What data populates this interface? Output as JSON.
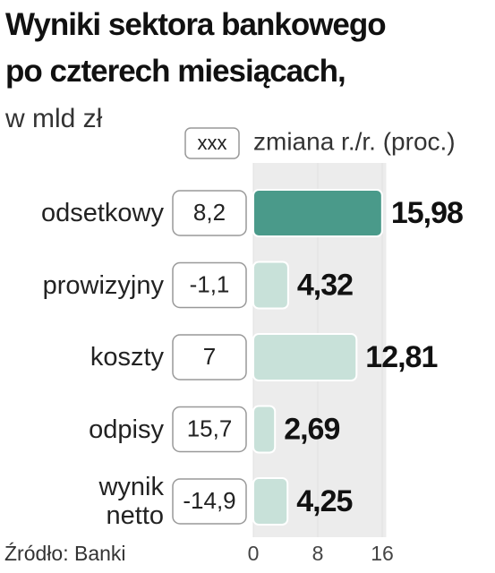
{
  "chart_data": {
    "type": "bar",
    "orientation": "horizontal",
    "title": "Wyniki sektora bankowego\npo czterech miesiącach,",
    "subtitle": "w mld zł",
    "legend_sample": "xxx",
    "legend_label": "zmiana r./r. (proc.)",
    "categories": [
      "odsetkowy",
      "prowizyjny",
      "koszty",
      "odpisy",
      "wynik\nnetto"
    ],
    "values": [
      15.98,
      4.32,
      12.81,
      2.69,
      4.25
    ],
    "value_labels": [
      "15,98",
      "4,32",
      "12,81",
      "2,69",
      "4,25"
    ],
    "change_labels": [
      "8,2",
      "-1,1",
      "7",
      "15,7",
      "-14,9"
    ],
    "colors": [
      "#4a9a8a",
      "#c8e1d9",
      "#c8e1d9",
      "#c8e1d9",
      "#c8e1d9"
    ],
    "xlim": [
      0,
      16.5
    ],
    "xticks": [
      0,
      8,
      16
    ],
    "source": "Źródło: Banki"
  }
}
